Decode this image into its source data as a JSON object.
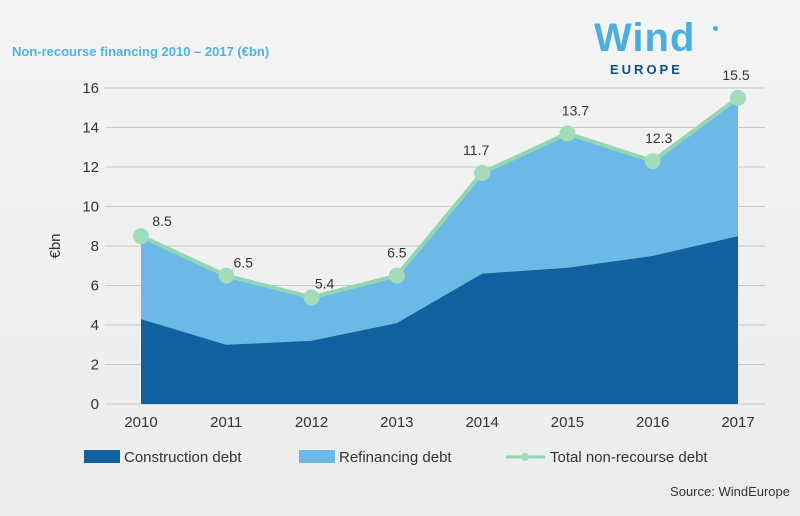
{
  "title": "Non-recourse financing 2010 – 2017 (€bn)",
  "logo": {
    "wind": "Wind",
    "europe": "EUROPE"
  },
  "source": "Source: WindEurope",
  "colors": {
    "construction": "#11609f",
    "refinancing": "#6cb8e6",
    "total_line": "#93d7b2",
    "total_marker": "#a3dcb8",
    "grid": "#c8c8c8"
  },
  "chart_data": {
    "type": "area",
    "categories": [
      "2010",
      "2011",
      "2012",
      "2013",
      "2014",
      "2015",
      "2016",
      "2017"
    ],
    "ylabel": "€bn",
    "ylim": [
      0,
      16
    ],
    "yticks": [
      "0",
      "2",
      "4",
      "6",
      "8",
      "10",
      "12",
      "14",
      "16"
    ],
    "grid": true,
    "legend_position": "bottom",
    "series": [
      {
        "name": "Construction debt",
        "kind": "area",
        "values": [
          4.3,
          3.0,
          3.2,
          4.1,
          6.6,
          6.9,
          7.5,
          8.5
        ]
      },
      {
        "name": "Refinancing debt",
        "kind": "area",
        "values": [
          4.2,
          3.5,
          2.2,
          2.4,
          5.1,
          6.8,
          4.8,
          7.0
        ]
      },
      {
        "name": "Total non-recourse debt",
        "kind": "line",
        "values": [
          8.5,
          6.5,
          5.4,
          6.5,
          11.7,
          13.7,
          12.3,
          15.5
        ]
      }
    ],
    "data_labels": [
      "8.5",
      "6.5",
      "5.4",
      "6.5",
      "11.7",
      "13.7",
      "12.3",
      "15.5"
    ]
  }
}
